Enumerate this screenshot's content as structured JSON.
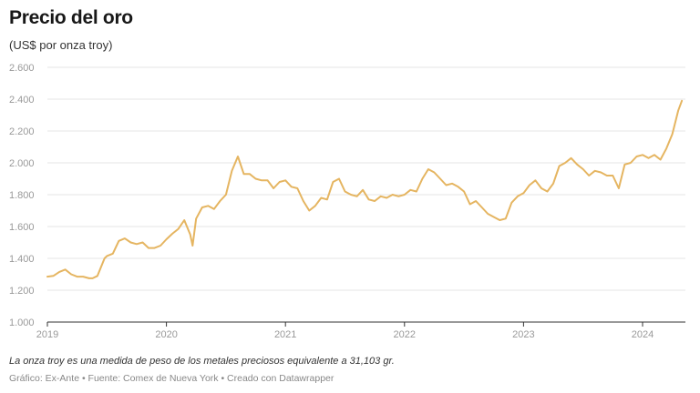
{
  "page": {
    "title": "Precio del oro",
    "subtitle": "(US$ por onza troy)",
    "note": "La onza troy es una medida de peso de los metales preciosos equivalente a 31,103 gr.",
    "footer": "Gráfico: Ex-Ante • Fuente: Comex de Nueva York • Creado con Datawrapper"
  },
  "colors": {
    "line": "#e5b561",
    "grid": "#e6e6e6",
    "baseline": "#333333",
    "axis_text": "#999999"
  },
  "chart_data": {
    "type": "line",
    "title": "Precio del oro",
    "subtitle": "(US$ por onza troy)",
    "xlabel": "",
    "ylabel": "",
    "xlim": [
      2019.0,
      2024.36
    ],
    "ylim": [
      1000,
      2600
    ],
    "grid": true,
    "y_ticks": [
      1000,
      1200,
      1400,
      1600,
      1800,
      2000,
      2200,
      2400,
      2600
    ],
    "y_tick_labels": [
      "1.000",
      "1.200",
      "1.400",
      "1.600",
      "1.800",
      "2.000",
      "2.200",
      "2.400",
      "2.600"
    ],
    "x_ticks": [
      2019,
      2020,
      2021,
      2022,
      2023,
      2024
    ],
    "x_tick_labels": [
      "2019",
      "2020",
      "2021",
      "2022",
      "2023",
      "2024"
    ],
    "series": [
      {
        "name": "",
        "x": [
          2019.0,
          2019.05,
          2019.1,
          2019.15,
          2019.2,
          2019.25,
          2019.3,
          2019.35,
          2019.38,
          2019.42,
          2019.45,
          2019.48,
          2019.5,
          2019.55,
          2019.6,
          2019.65,
          2019.7,
          2019.75,
          2019.8,
          2019.85,
          2019.9,
          2019.95,
          2020.0,
          2020.05,
          2020.1,
          2020.15,
          2020.2,
          2020.22,
          2020.25,
          2020.3,
          2020.35,
          2020.4,
          2020.45,
          2020.5,
          2020.55,
          2020.6,
          2020.65,
          2020.7,
          2020.75,
          2020.8,
          2020.85,
          2020.9,
          2020.95,
          2021.0,
          2021.05,
          2021.1,
          2021.15,
          2021.2,
          2021.25,
          2021.3,
          2021.35,
          2021.4,
          2021.45,
          2021.5,
          2021.55,
          2021.6,
          2021.65,
          2021.7,
          2021.75,
          2021.8,
          2021.85,
          2021.9,
          2021.95,
          2022.0,
          2022.05,
          2022.1,
          2022.15,
          2022.2,
          2022.25,
          2022.3,
          2022.35,
          2022.4,
          2022.45,
          2022.5,
          2022.55,
          2022.6,
          2022.65,
          2022.7,
          2022.75,
          2022.8,
          2022.85,
          2022.9,
          2022.95,
          2023.0,
          2023.05,
          2023.1,
          2023.15,
          2023.2,
          2023.25,
          2023.3,
          2023.35,
          2023.4,
          2023.45,
          2023.5,
          2023.55,
          2023.6,
          2023.65,
          2023.7,
          2023.75,
          2023.8,
          2023.85,
          2023.9,
          2023.95,
          2024.0,
          2024.05,
          2024.1,
          2024.15,
          2024.2,
          2024.25,
          2024.3,
          2024.33
        ],
        "y": [
          1285,
          1290,
          1315,
          1330,
          1300,
          1285,
          1285,
          1275,
          1275,
          1290,
          1345,
          1400,
          1415,
          1430,
          1510,
          1525,
          1500,
          1490,
          1500,
          1465,
          1465,
          1480,
          1520,
          1555,
          1585,
          1640,
          1550,
          1480,
          1650,
          1720,
          1730,
          1710,
          1760,
          1800,
          1950,
          2040,
          1930,
          1930,
          1900,
          1890,
          1890,
          1840,
          1880,
          1890,
          1850,
          1840,
          1760,
          1700,
          1730,
          1780,
          1770,
          1880,
          1900,
          1820,
          1800,
          1790,
          1830,
          1770,
          1760,
          1790,
          1780,
          1800,
          1790,
          1800,
          1830,
          1820,
          1900,
          1960,
          1940,
          1900,
          1860,
          1870,
          1850,
          1820,
          1740,
          1760,
          1720,
          1680,
          1660,
          1640,
          1650,
          1750,
          1790,
          1810,
          1860,
          1890,
          1840,
          1820,
          1870,
          1980,
          2000,
          2030,
          1990,
          1960,
          1920,
          1950,
          1940,
          1920,
          1920,
          1840,
          1990,
          2000,
          2040,
          2050,
          2030,
          2050,
          2020,
          2090,
          2180,
          2330,
          2390
        ]
      }
    ]
  }
}
